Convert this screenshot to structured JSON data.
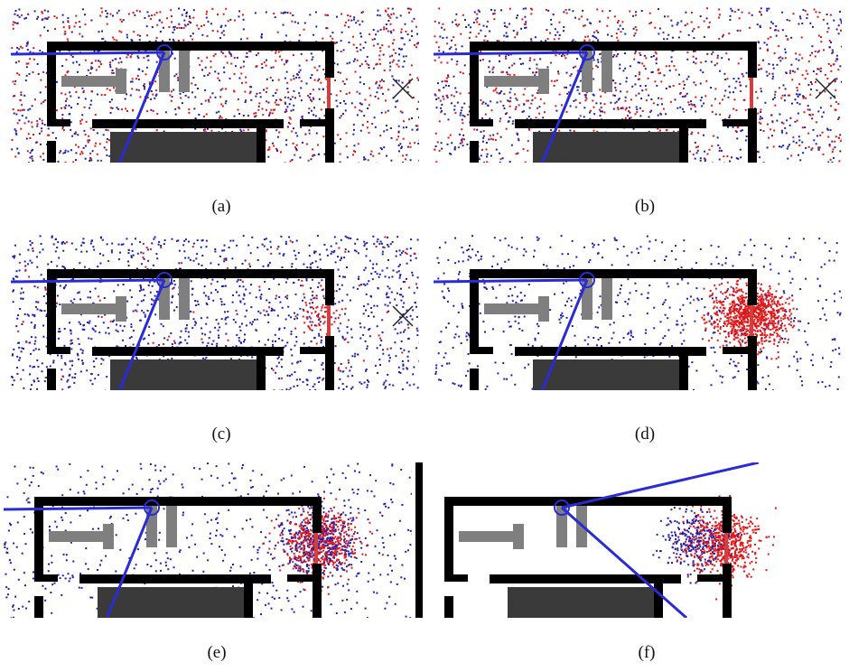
{
  "colors": {
    "wall": "#000000",
    "robot_color": "#2a2ad6",
    "particle_red": "#e01818",
    "particle_blue": "#2020b0",
    "obstacle_gray": "#7f7f7f",
    "table_dark": "#3a3a3a",
    "door_red": "#d04040",
    "target_mark": "#222222"
  },
  "panels": [
    {
      "id": "a",
      "caption": "(a)",
      "particles": "uniform_mixed",
      "marker": "x"
    },
    {
      "id": "b",
      "caption": "(b)",
      "particles": "uniform_mixed",
      "marker": "x"
    },
    {
      "id": "c",
      "caption": "(c)",
      "particles": "uniform_blue",
      "marker": "x"
    },
    {
      "id": "d",
      "caption": "(d)",
      "particles": "red_cluster",
      "marker": "none"
    },
    {
      "id": "e",
      "caption": "(e)",
      "particles": "mixed_cluster",
      "marker": "none"
    },
    {
      "id": "f",
      "caption": "(f)",
      "particles": "cluster_only",
      "marker": "none"
    }
  ]
}
